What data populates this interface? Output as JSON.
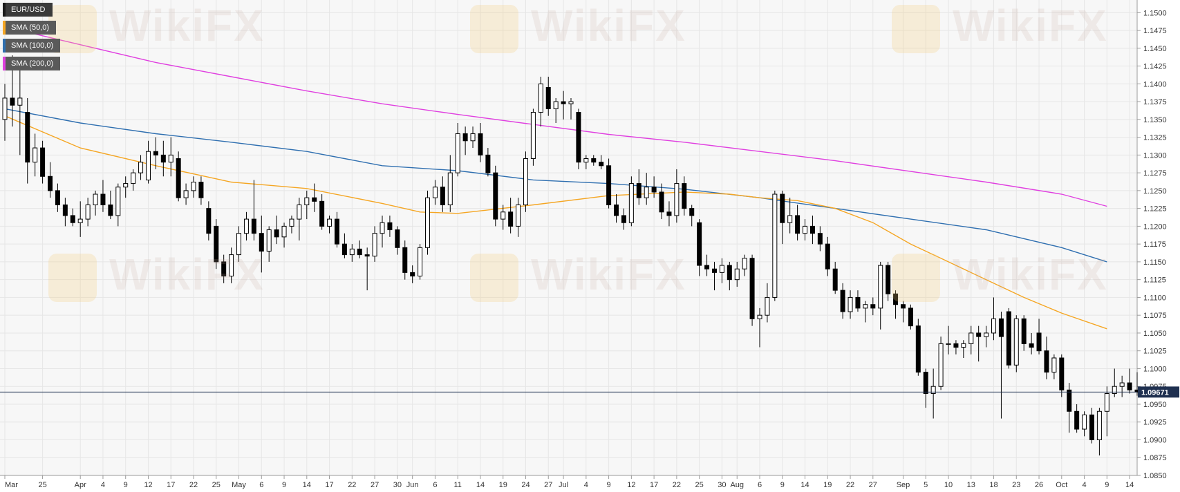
{
  "watermark": "WikiFX",
  "legend": [
    {
      "label": "EUR/USD",
      "color": "#1a1a1a"
    },
    {
      "label": "SMA (50,0)",
      "color": "#f5a623"
    },
    {
      "label": "SMA (100,0)",
      "color": "#2f6fb0"
    },
    {
      "label": "SMA (200,0)",
      "color": "#e040e0"
    }
  ],
  "colors": {
    "grid": "#e6e6e6",
    "background": "#f7f7f7",
    "bear": "#000000",
    "bull": "#ffffff",
    "sma50": "#f5a623",
    "sma100": "#2f6fb0",
    "sma200": "#e040e0",
    "price_line": "#1f3050",
    "price_label_bg": "#1f3050"
  },
  "chart_data": {
    "type": "candlestick",
    "symbol": "EUR/USD",
    "current_price": "1.09671",
    "ylim": [
      1.085,
      1.151
    ],
    "y_ticks": [
      "1.1500",
      "1.1475",
      "1.1450",
      "1.1425",
      "1.1400",
      "1.1375",
      "1.1350",
      "1.1325",
      "1.1300",
      "1.1275",
      "1.1250",
      "1.1225",
      "1.1200",
      "1.1175",
      "1.1150",
      "1.1125",
      "1.1100",
      "1.1075",
      "1.1050",
      "1.1025",
      "1.1000",
      "1.0975",
      "1.0950",
      "1.0925",
      "1.0900",
      "1.0875",
      "1.0850"
    ],
    "x_ticks": [
      {
        "label": "Mar",
        "idx": 0
      },
      {
        "label": "25",
        "idx": 5
      },
      {
        "label": "Apr",
        "idx": 10
      },
      {
        "label": "4",
        "idx": 13
      },
      {
        "label": "9",
        "idx": 16
      },
      {
        "label": "12",
        "idx": 19
      },
      {
        "label": "17",
        "idx": 22
      },
      {
        "label": "22",
        "idx": 25
      },
      {
        "label": "25",
        "idx": 28
      },
      {
        "label": "May",
        "idx": 31
      },
      {
        "label": "6",
        "idx": 34
      },
      {
        "label": "9",
        "idx": 37
      },
      {
        "label": "14",
        "idx": 40
      },
      {
        "label": "17",
        "idx": 43
      },
      {
        "label": "22",
        "idx": 46
      },
      {
        "label": "27",
        "idx": 49
      },
      {
        "label": "30",
        "idx": 52
      },
      {
        "label": "Jun",
        "idx": 54
      },
      {
        "label": "6",
        "idx": 57
      },
      {
        "label": "11",
        "idx": 60
      },
      {
        "label": "14",
        "idx": 63
      },
      {
        "label": "19",
        "idx": 66
      },
      {
        "label": "24",
        "idx": 69
      },
      {
        "label": "27",
        "idx": 72
      },
      {
        "label": "Jul",
        "idx": 74
      },
      {
        "label": "4",
        "idx": 77
      },
      {
        "label": "9",
        "idx": 80
      },
      {
        "label": "12",
        "idx": 83
      },
      {
        "label": "17",
        "idx": 86
      },
      {
        "label": "22",
        "idx": 89
      },
      {
        "label": "25",
        "idx": 92
      },
      {
        "label": "30",
        "idx": 95
      },
      {
        "label": "Aug",
        "idx": 97
      },
      {
        "label": "6",
        "idx": 100
      },
      {
        "label": "9",
        "idx": 103
      },
      {
        "label": "14",
        "idx": 106
      },
      {
        "label": "19",
        "idx": 109
      },
      {
        "label": "22",
        "idx": 112
      },
      {
        "label": "27",
        "idx": 115
      },
      {
        "label": "Sep",
        "idx": 119
      },
      {
        "label": "5",
        "idx": 122
      },
      {
        "label": "10",
        "idx": 125
      },
      {
        "label": "13",
        "idx": 128
      },
      {
        "label": "18",
        "idx": 131
      },
      {
        "label": "23",
        "idx": 134
      },
      {
        "label": "26",
        "idx": 137
      },
      {
        "label": "Oct",
        "idx": 140
      },
      {
        "label": "4",
        "idx": 143
      },
      {
        "label": "9",
        "idx": 146
      },
      {
        "label": "14",
        "idx": 149
      }
    ],
    "candles": [
      [
        1.135,
        1.14,
        1.132,
        1.138
      ],
      [
        1.138,
        1.144,
        1.134,
        1.137
      ],
      [
        1.137,
        1.1435,
        1.13,
        1.138
      ],
      [
        1.136,
        1.138,
        1.126,
        1.129
      ],
      [
        1.129,
        1.133,
        1.127,
        1.131
      ],
      [
        1.131,
        1.132,
        1.126,
        1.127
      ],
      [
        1.127,
        1.129,
        1.124,
        1.125
      ],
      [
        1.125,
        1.126,
        1.122,
        1.123
      ],
      [
        1.123,
        1.124,
        1.12,
        1.1215
      ],
      [
        1.1215,
        1.1225,
        1.12,
        1.1205
      ],
      [
        1.1205,
        1.1235,
        1.1185,
        1.121
      ],
      [
        1.121,
        1.124,
        1.12,
        1.123
      ],
      [
        1.123,
        1.125,
        1.1215,
        1.1245
      ],
      [
        1.1245,
        1.1265,
        1.122,
        1.123
      ],
      [
        1.123,
        1.125,
        1.121,
        1.1215
      ],
      [
        1.1215,
        1.126,
        1.12,
        1.1255
      ],
      [
        1.1255,
        1.127,
        1.124,
        1.126
      ],
      [
        1.126,
        1.128,
        1.125,
        1.1275
      ],
      [
        1.1275,
        1.13,
        1.1265,
        1.129
      ],
      [
        1.1265,
        1.132,
        1.126,
        1.1305
      ],
      [
        1.1305,
        1.1325,
        1.128,
        1.13
      ],
      [
        1.13,
        1.132,
        1.127,
        1.129
      ],
      [
        1.129,
        1.1325,
        1.127,
        1.13
      ],
      [
        1.1295,
        1.1305,
        1.1235,
        1.124
      ],
      [
        1.124,
        1.126,
        1.123,
        1.125
      ],
      [
        1.125,
        1.127,
        1.124,
        1.1262
      ],
      [
        1.1262,
        1.127,
        1.123,
        1.124
      ],
      [
        1.1225,
        1.1235,
        1.118,
        1.119
      ],
      [
        1.12,
        1.121,
        1.114,
        1.115
      ],
      [
        1.115,
        1.116,
        1.112,
        1.113
      ],
      [
        1.113,
        1.117,
        1.112,
        1.116
      ],
      [
        1.116,
        1.12,
        1.115,
        1.119
      ],
      [
        1.119,
        1.122,
        1.118,
        1.121
      ],
      [
        1.121,
        1.1265,
        1.118,
        1.119
      ],
      [
        1.119,
        1.1215,
        1.1135,
        1.1165
      ],
      [
        1.1165,
        1.12,
        1.115,
        1.1195
      ],
      [
        1.1195,
        1.1215,
        1.1175,
        1.1185
      ],
      [
        1.1185,
        1.1205,
        1.117,
        1.12
      ],
      [
        1.12,
        1.1215,
        1.119,
        1.121
      ],
      [
        1.121,
        1.124,
        1.118,
        1.123
      ],
      [
        1.123,
        1.125,
        1.121,
        1.124
      ],
      [
        1.124,
        1.126,
        1.122,
        1.1235
      ],
      [
        1.1235,
        1.1245,
        1.1195,
        1.12
      ],
      [
        1.12,
        1.1215,
        1.119,
        1.121
      ],
      [
        1.121,
        1.122,
        1.117,
        1.1175
      ],
      [
        1.1175,
        1.119,
        1.1155,
        1.116
      ],
      [
        1.116,
        1.1175,
        1.115,
        1.1168
      ],
      [
        1.1168,
        1.118,
        1.1155,
        1.116
      ],
      [
        1.116,
        1.117,
        1.111,
        1.1158
      ],
      [
        1.1158,
        1.12,
        1.115,
        1.119
      ],
      [
        1.119,
        1.1215,
        1.117,
        1.1205
      ],
      [
        1.1205,
        1.1215,
        1.1185,
        1.1195
      ],
      [
        1.1195,
        1.12,
        1.116,
        1.117
      ],
      [
        1.117,
        1.118,
        1.1125,
        1.1135
      ],
      [
        1.1135,
        1.1145,
        1.112,
        1.113
      ],
      [
        1.113,
        1.1175,
        1.1125,
        1.117
      ],
      [
        1.117,
        1.125,
        1.116,
        1.124
      ],
      [
        1.124,
        1.1265,
        1.123,
        1.1255
      ],
      [
        1.1255,
        1.127,
        1.122,
        1.123
      ],
      [
        1.123,
        1.13,
        1.122,
        1.1275
      ],
      [
        1.1275,
        1.1345,
        1.127,
        1.133
      ],
      [
        1.133,
        1.134,
        1.13,
        1.132
      ],
      [
        1.132,
        1.134,
        1.131,
        1.133
      ],
      [
        1.133,
        1.1345,
        1.129,
        1.13
      ],
      [
        1.13,
        1.131,
        1.127,
        1.1275
      ],
      [
        1.1275,
        1.1285,
        1.12,
        1.121
      ],
      [
        1.121,
        1.123,
        1.1195,
        1.122
      ],
      [
        1.122,
        1.124,
        1.119,
        1.12
      ],
      [
        1.12,
        1.124,
        1.1185,
        1.123
      ],
      [
        1.123,
        1.1305,
        1.122,
        1.1295
      ],
      [
        1.1295,
        1.1365,
        1.1285,
        1.136
      ],
      [
        1.136,
        1.141,
        1.134,
        1.14
      ],
      [
        1.1395,
        1.141,
        1.1355,
        1.1365
      ],
      [
        1.1365,
        1.138,
        1.1345,
        1.1375
      ],
      [
        1.1375,
        1.139,
        1.135,
        1.1372
      ],
      [
        1.1372,
        1.138,
        1.135,
        1.1375
      ],
      [
        1.136,
        1.1365,
        1.128,
        1.129
      ],
      [
        1.129,
        1.13,
        1.128,
        1.1295
      ],
      [
        1.1295,
        1.13,
        1.1285,
        1.129
      ],
      [
        1.129,
        1.13,
        1.128,
        1.1285
      ],
      [
        1.1285,
        1.1295,
        1.1225,
        1.123
      ],
      [
        1.123,
        1.1245,
        1.1205,
        1.1215
      ],
      [
        1.1215,
        1.1225,
        1.1195,
        1.1205
      ],
      [
        1.1205,
        1.127,
        1.12,
        1.126
      ],
      [
        1.126,
        1.128,
        1.123,
        1.124
      ],
      [
        1.124,
        1.1275,
        1.123,
        1.1255
      ],
      [
        1.1255,
        1.127,
        1.124,
        1.1248
      ],
      [
        1.1248,
        1.126,
        1.121,
        1.122
      ],
      [
        1.122,
        1.1235,
        1.12,
        1.1215
      ],
      [
        1.1215,
        1.128,
        1.1205,
        1.126
      ],
      [
        1.126,
        1.127,
        1.1215,
        1.1225
      ],
      [
        1.1225,
        1.123,
        1.12,
        1.1215
      ],
      [
        1.1205,
        1.121,
        1.113,
        1.1145
      ],
      [
        1.1145,
        1.116,
        1.113,
        1.114
      ],
      [
        1.114,
        1.115,
        1.111,
        1.1135
      ],
      [
        1.1135,
        1.1155,
        1.112,
        1.1145
      ],
      [
        1.1145,
        1.115,
        1.111,
        1.1125
      ],
      [
        1.1125,
        1.115,
        1.1115,
        1.114
      ],
      [
        1.114,
        1.116,
        1.113,
        1.1155
      ],
      [
        1.1155,
        1.116,
        1.106,
        1.107
      ],
      [
        1.107,
        1.1085,
        1.103,
        1.1075
      ],
      [
        1.1075,
        1.112,
        1.1065,
        1.11
      ],
      [
        1.11,
        1.125,
        1.1095,
        1.1245
      ],
      [
        1.1245,
        1.125,
        1.1175,
        1.1205
      ],
      [
        1.1205,
        1.124,
        1.119,
        1.1215
      ],
      [
        1.1215,
        1.123,
        1.118,
        1.119
      ],
      [
        1.119,
        1.121,
        1.118,
        1.12
      ],
      [
        1.12,
        1.1215,
        1.1175,
        1.119
      ],
      [
        1.119,
        1.12,
        1.1165,
        1.1175
      ],
      [
        1.1175,
        1.1185,
        1.113,
        1.114
      ],
      [
        1.114,
        1.115,
        1.1105,
        1.111
      ],
      [
        1.111,
        1.112,
        1.107,
        1.108
      ],
      [
        1.108,
        1.111,
        1.107,
        1.11
      ],
      [
        1.11,
        1.111,
        1.108,
        1.1085
      ],
      [
        1.1085,
        1.1095,
        1.1065,
        1.109
      ],
      [
        1.109,
        1.11,
        1.1075,
        1.1085
      ],
      [
        1.1085,
        1.115,
        1.1055,
        1.1145
      ],
      [
        1.1145,
        1.115,
        1.1095,
        1.1105
      ],
      [
        1.1105,
        1.111,
        1.107,
        1.109
      ],
      [
        1.109,
        1.1095,
        1.1065,
        1.1085
      ],
      [
        1.1085,
        1.109,
        1.1055,
        1.106
      ],
      [
        1.106,
        1.107,
        1.099,
        1.0995
      ],
      [
        1.0995,
        1.1,
        1.0945,
        1.0965
      ],
      [
        1.0965,
        1.1,
        1.093,
        1.0975
      ],
      [
        1.0975,
        1.1045,
        1.097,
        1.1035
      ],
      [
        1.1035,
        1.106,
        1.102,
        1.1035
      ],
      [
        1.1035,
        1.104,
        1.102,
        1.103
      ],
      [
        1.103,
        1.104,
        1.1015,
        1.1035
      ],
      [
        1.1035,
        1.106,
        1.102,
        1.105
      ],
      [
        1.105,
        1.106,
        1.101,
        1.1045
      ],
      [
        1.1045,
        1.106,
        1.103,
        1.105
      ],
      [
        1.105,
        1.11,
        1.104,
        1.107
      ],
      [
        1.107,
        1.108,
        1.093,
        1.1045
      ],
      [
        1.108,
        1.1085,
        1.1,
        1.1005
      ],
      [
        1.1005,
        1.1075,
        1.0995,
        1.107
      ],
      [
        1.107,
        1.1075,
        1.1025,
        1.1035
      ],
      [
        1.1035,
        1.105,
        1.102,
        1.103
      ],
      [
        1.105,
        1.107,
        1.102,
        1.1025
      ],
      [
        1.1025,
        1.1045,
        1.0985,
        1.0995
      ],
      [
        1.0995,
        1.102,
        1.0985,
        1.1015
      ],
      [
        1.1015,
        1.102,
        1.096,
        1.097
      ],
      [
        1.097,
        1.098,
        1.091,
        1.094
      ],
      [
        1.094,
        1.095,
        1.091,
        1.0915
      ],
      [
        1.0915,
        1.094,
        1.0905,
        1.0935
      ],
      [
        1.0935,
        1.0945,
        1.0895,
        1.09
      ],
      [
        1.09,
        1.0945,
        1.0878,
        1.094
      ],
      [
        1.094,
        1.0975,
        1.0905,
        1.0965
      ],
      [
        1.0965,
        1.1,
        1.096,
        1.0975
      ],
      [
        1.0975,
        1.099,
        1.096,
        1.098
      ],
      [
        1.098,
        1.1,
        1.0965,
        1.097
      ],
      [
        1.097,
        1.0995,
        1.0962,
        1.0967
      ]
    ],
    "sma50_points": [
      [
        0,
        1.1355
      ],
      [
        10,
        1.131
      ],
      [
        20,
        1.1285
      ],
      [
        30,
        1.1262
      ],
      [
        40,
        1.1253
      ],
      [
        50,
        1.1232
      ],
      [
        55,
        1.122
      ],
      [
        60,
        1.1218
      ],
      [
        70,
        1.123
      ],
      [
        80,
        1.1243
      ],
      [
        90,
        1.1248
      ],
      [
        96,
        1.1245
      ],
      [
        100,
        1.124
      ],
      [
        105,
        1.1236
      ],
      [
        110,
        1.1225
      ],
      [
        115,
        1.1205
      ],
      [
        120,
        1.1175
      ],
      [
        125,
        1.115
      ],
      [
        130,
        1.1125
      ],
      [
        135,
        1.11
      ],
      [
        140,
        1.1078
      ],
      [
        146,
        1.1056
      ]
    ],
    "sma100_points": [
      [
        0,
        1.1365
      ],
      [
        10,
        1.1345
      ],
      [
        20,
        1.133
      ],
      [
        30,
        1.1318
      ],
      [
        40,
        1.1305
      ],
      [
        50,
        1.1285
      ],
      [
        60,
        1.1278
      ],
      [
        70,
        1.1265
      ],
      [
        80,
        1.126
      ],
      [
        90,
        1.1252
      ],
      [
        100,
        1.124
      ],
      [
        110,
        1.1225
      ],
      [
        120,
        1.121
      ],
      [
        130,
        1.1195
      ],
      [
        140,
        1.117
      ],
      [
        146,
        1.115
      ]
    ],
    "sma200_points": [
      [
        0,
        1.148
      ],
      [
        10,
        1.1455
      ],
      [
        20,
        1.143
      ],
      [
        30,
        1.141
      ],
      [
        40,
        1.139
      ],
      [
        50,
        1.1372
      ],
      [
        60,
        1.1357
      ],
      [
        70,
        1.1343
      ],
      [
        80,
        1.1329
      ],
      [
        90,
        1.1318
      ],
      [
        100,
        1.1305
      ],
      [
        110,
        1.1292
      ],
      [
        120,
        1.1277
      ],
      [
        130,
        1.1262
      ],
      [
        140,
        1.1245
      ],
      [
        146,
        1.1228
      ]
    ]
  }
}
